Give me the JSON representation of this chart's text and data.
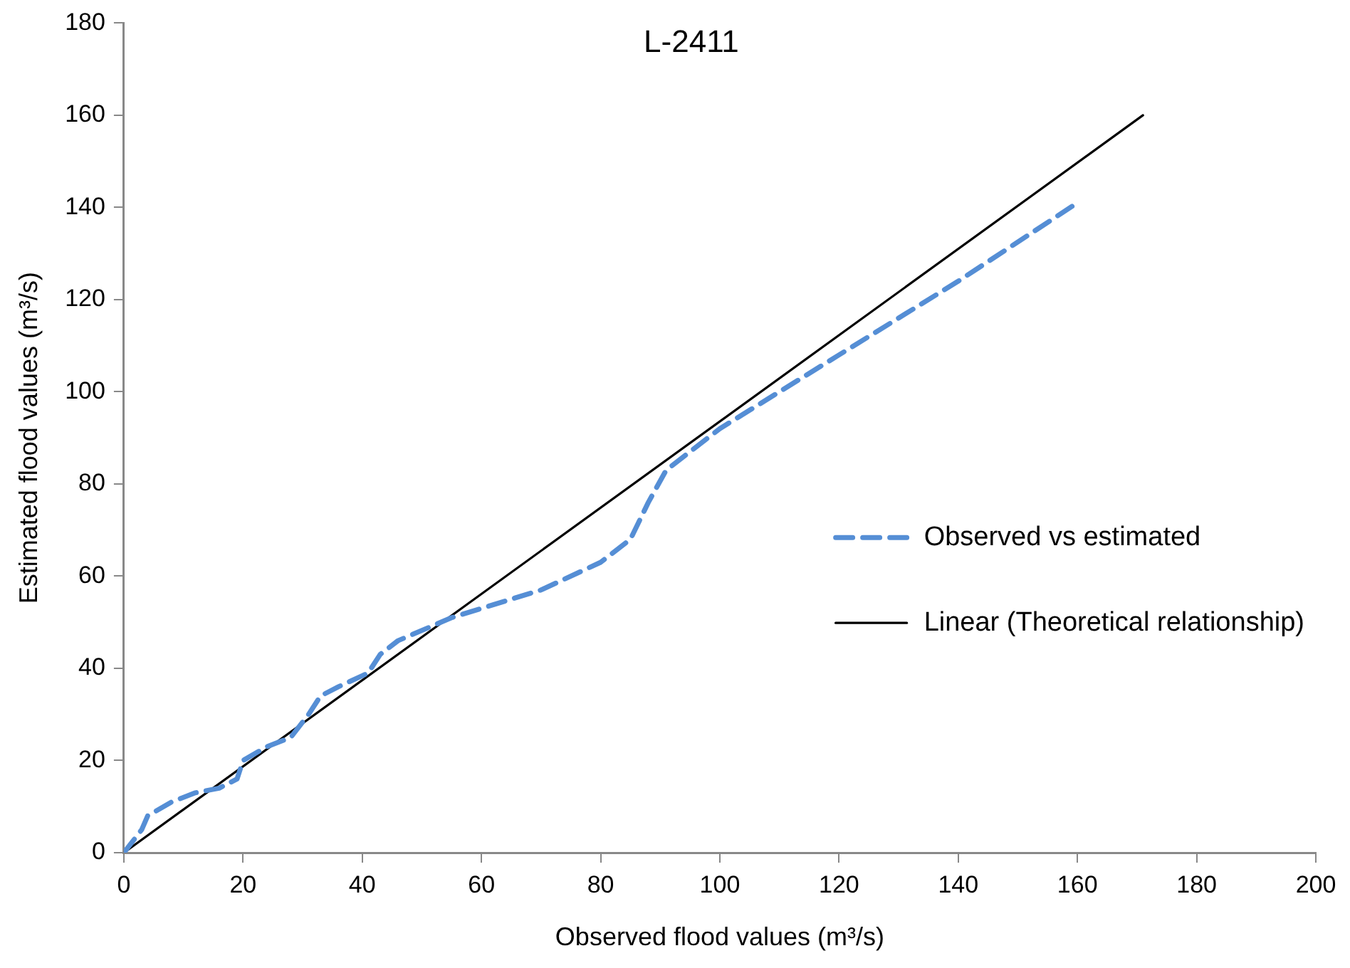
{
  "chart_data": {
    "type": "line",
    "title": "L-2411",
    "xlabel": "Observed flood values (m³/s)",
    "ylabel": "Estimated flood values (m³/s)",
    "xlim": [
      0,
      200
    ],
    "xticks": [
      0,
      20,
      40,
      60,
      80,
      100,
      120,
      140,
      160,
      180,
      200
    ],
    "ylim": [
      0,
      180
    ],
    "yticks": [
      0,
      20,
      40,
      60,
      80,
      100,
      120,
      140,
      160,
      180
    ],
    "grid": false,
    "legend": "right",
    "marker": "none",
    "series": [
      {
        "name": "Observed vs estimated",
        "color": "#558ed5",
        "line_style": "dashed",
        "x": [
          0,
          3,
          4,
          8,
          12,
          16,
          19,
          20,
          24,
          28,
          31,
          33,
          36,
          41,
          43,
          46,
          55,
          70,
          80,
          85,
          88,
          91,
          95,
          100,
          120,
          140,
          160
        ],
        "values": [
          0,
          5,
          8,
          11,
          13,
          14,
          16,
          20,
          23,
          25,
          30,
          34,
          36,
          39,
          43,
          46,
          51,
          57,
          63,
          68,
          76,
          83,
          87,
          92,
          108,
          124,
          141
        ]
      },
      {
        "name": "Linear (Theoretical relationship)",
        "color": "#000000",
        "line_style": "solid",
        "x": [
          0,
          171
        ],
        "values": [
          0,
          160
        ]
      }
    ]
  }
}
